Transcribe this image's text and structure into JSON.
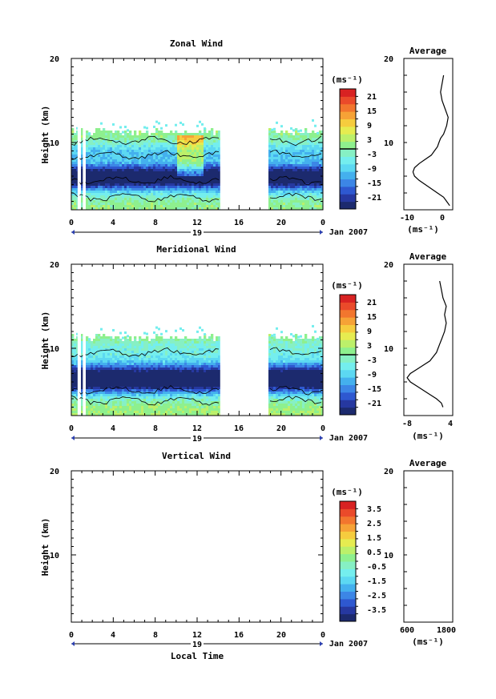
{
  "panels": [
    {
      "title": "Zonal Wind",
      "ylabel": "Height (km)",
      "cbar_unit": "(ms⁻¹)",
      "cbar_ticks": [
        "21",
        "15",
        "9",
        "3",
        "-3",
        "-9",
        "-15",
        "-21"
      ],
      "cbar_zero_line": true,
      "has_field": true,
      "avg_title": "Average",
      "avg_xlabel": "(ms⁻¹)",
      "avg_xticks": [
        "-10",
        "0"
      ]
    },
    {
      "title": "Meridional Wind",
      "ylabel": "Height (km)",
      "cbar_unit": "(ms⁻¹)",
      "cbar_ticks": [
        "21",
        "15",
        "9",
        "3",
        "-3",
        "-9",
        "-15",
        "-21"
      ],
      "cbar_zero_line": true,
      "has_field": true,
      "avg_title": "Average",
      "avg_xlabel": "(ms⁻¹)",
      "avg_xticks": [
        "-8",
        "4"
      ]
    },
    {
      "title": "Vertical Wind",
      "ylabel": "Height (km)",
      "cbar_unit": "(ms⁻¹)",
      "cbar_ticks": [
        "3.5",
        "2.5",
        "1.5",
        "0.5",
        "-0.5",
        "-1.5",
        "-2.5",
        "-3.5"
      ],
      "cbar_zero_line": false,
      "has_field": false,
      "avg_title": "Average",
      "avg_xlabel": "(ms⁻¹)",
      "avg_xticks": [
        "600",
        "1800"
      ]
    }
  ],
  "shared": {
    "xticks": [
      "0",
      "4",
      "8",
      "12",
      "16",
      "20",
      "0"
    ],
    "yticks": [
      "10",
      "20"
    ],
    "day_label": "19",
    "month_label": "Jan 2007",
    "xlabel": "Local Time"
  },
  "colors": {
    "colormap": [
      "#1c2a6e",
      "#2638a0",
      "#2e58d0",
      "#3c86e6",
      "#44b0ee",
      "#5cd8f2",
      "#74eeee",
      "#86f0c4",
      "#8ef08e",
      "#bcf06a",
      "#e6ec50",
      "#f6cc3e",
      "#f6a236",
      "#f2762e",
      "#ea4a2a",
      "#d82222"
    ]
  },
  "chart_data": [
    {
      "type": "heatmap",
      "title": "Zonal Wind",
      "ylabel": "Height (km)",
      "x_range_hours": [
        0,
        24
      ],
      "x_tick_values": [
        0,
        4,
        8,
        12,
        16,
        20,
        24
      ],
      "ylim": [
        2,
        20
      ],
      "colorbar_range": [
        -21,
        21
      ],
      "colorbar_ticks": [
        21,
        15,
        9,
        3,
        -3,
        -9,
        -15,
        -21
      ],
      "data_gaps_hours": [
        [
          0.6,
          0.8
        ],
        [
          1.1,
          1.35
        ],
        [
          14.2,
          18.8
        ]
      ],
      "profile_rows": [
        [
          2,
          3,
          1,
          1,
          1,
          1,
          1,
          1,
          1,
          1,
          1,
          1,
          1,
          1,
          1,
          1,
          1,
          1,
          1,
          1,
          1,
          1,
          1,
          1
        ],
        [
          3,
          3,
          3,
          3,
          3,
          3,
          3,
          3,
          3,
          3,
          3,
          3,
          3,
          3,
          3,
          3,
          3,
          3,
          3,
          3,
          3,
          3,
          3,
          3
        ],
        [
          1.8,
          1.9,
          2.1,
          2.3,
          2.2,
          2.0,
          1.9,
          1.8,
          1.7,
          1.6,
          1.5,
          1.3,
          1.3,
          1.4,
          1.5,
          1.6,
          1.7,
          1.8,
          1.9,
          2.0,
          2.0,
          1.9,
          1.9,
          1.9
        ]
      ],
      "zero_contours": "approximate",
      "average_profile": {
        "xlabel": "(ms⁻¹)",
        "xlim": [
          -13,
          3
        ],
        "x_ticks": [
          -10,
          0
        ],
        "height_km": [
          2.5,
          3,
          3.5,
          4,
          4.5,
          5,
          5.5,
          6,
          6.5,
          7,
          7.5,
          8,
          8.5,
          9,
          9.5,
          10,
          10.5,
          11,
          11.5,
          12,
          13,
          14,
          15,
          16,
          17,
          18
        ],
        "wind": [
          2,
          1,
          0,
          -2,
          -4,
          -6,
          -8,
          -9.5,
          -10,
          -9.5,
          -8,
          -6,
          -4,
          -3,
          -2,
          -1.5,
          -1,
          0,
          0.5,
          1,
          1.5,
          0.5,
          -0.5,
          -1,
          -0.5,
          0
        ]
      }
    },
    {
      "type": "heatmap",
      "title": "Meridional Wind",
      "ylabel": "Height (km)",
      "x_range_hours": [
        0,
        24
      ],
      "x_tick_values": [
        0,
        4,
        8,
        12,
        16,
        20,
        24
      ],
      "ylim": [
        2,
        20
      ],
      "colorbar_range": [
        -21,
        21
      ],
      "colorbar_ticks": [
        21,
        15,
        9,
        3,
        -3,
        -9,
        -15,
        -21
      ],
      "data_gaps_hours": [
        [
          0.6,
          0.8
        ],
        [
          1.1,
          1.35
        ],
        [
          14.2,
          18.8
        ]
      ],
      "average_profile": {
        "xlabel": "(ms⁻¹)",
        "xlim": [
          -10,
          5
        ],
        "x_ticks": [
          -8,
          4
        ],
        "height_km": [
          3,
          3.5,
          4,
          4.5,
          5,
          5.5,
          6,
          6.5,
          7,
          7.5,
          8,
          8.5,
          9,
          9.5,
          10,
          10.5,
          11,
          11.5,
          12,
          13,
          14,
          15,
          16,
          17,
          18
        ],
        "wind": [
          2,
          1.5,
          0,
          -2,
          -4,
          -6,
          -8,
          -9,
          -8,
          -6,
          -4,
          -2,
          -1,
          0,
          0.5,
          1,
          1.5,
          2,
          2.5,
          3,
          2.5,
          3,
          2,
          1.5,
          1
        ]
      }
    },
    {
      "type": "heatmap",
      "title": "Vertical Wind",
      "ylabel": "Height (km)",
      "xlabel": "Local Time",
      "x_range_hours": [
        0,
        24
      ],
      "x_tick_values": [
        0,
        4,
        8,
        12,
        16,
        20,
        24
      ],
      "ylim": [
        2,
        20
      ],
      "colorbar_range": [
        -3.5,
        3.5
      ],
      "colorbar_ticks": [
        3.5,
        2.5,
        1.5,
        0.5,
        -0.5,
        -1.5,
        -2.5,
        -3.5
      ],
      "values": [],
      "average_profile": {
        "xlabel": "(ms⁻¹)",
        "xlim": [
          0,
          2000
        ],
        "x_ticks": [
          600,
          1800
        ],
        "height_km": [],
        "wind": []
      }
    }
  ]
}
